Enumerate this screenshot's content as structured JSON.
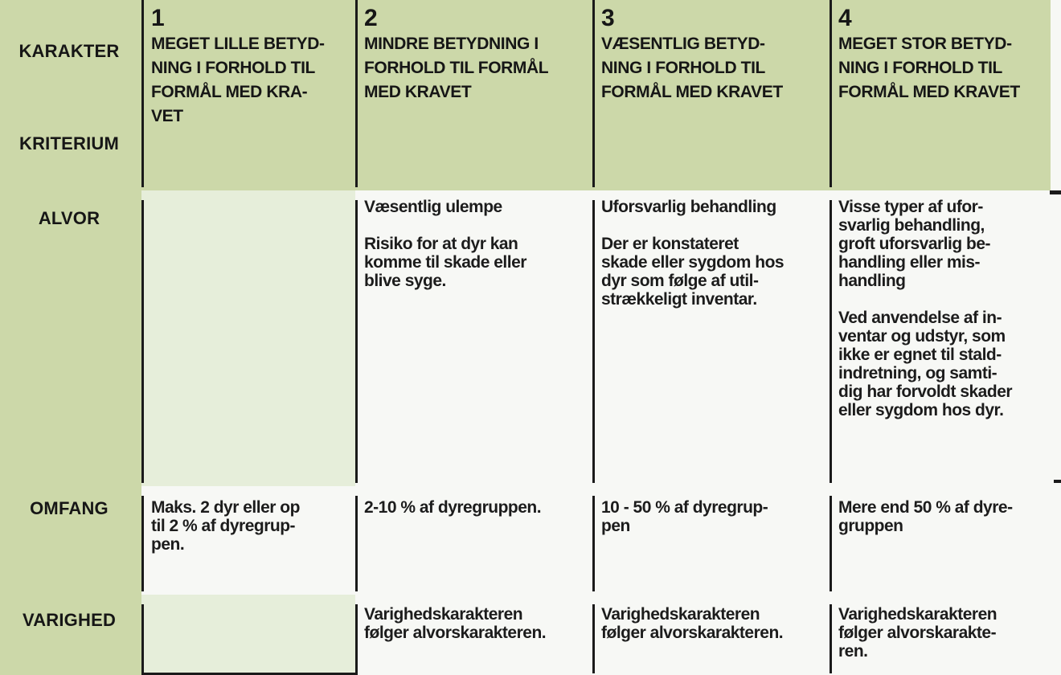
{
  "table": {
    "corner": {
      "top_label": "KARAKTER",
      "bottom_label": "KRITERIUM"
    },
    "columns": [
      {
        "number": "1",
        "heading": "MEGET LILLE BETYD-\nNING I FORHOLD TIL\nFORMÅL MED KRA-\nVET"
      },
      {
        "number": "2",
        "heading": "MINDRE BETYDNING I\nFORHOLD TIL FORMÅL\nMED KRAVET"
      },
      {
        "number": "3",
        "heading": "VÆSENTLIG BETYD-\nNING I FORHOLD TIL\nFORMÅL MED KRAVET"
      },
      {
        "number": "4",
        "heading": "MEGET STOR BETYD-\nNING I FORHOLD TIL\nFORMÅL MED KRAVET"
      }
    ],
    "rows": [
      {
        "label": "ALVOR",
        "cells": [
          "",
          "Væsentlig ulempe\n\nRisiko for at dyr kan\nkomme til skade eller\nblive syge.",
          "Uforsvarlig behandling\n\nDer er konstateret\nskade eller sygdom hos\ndyr som følge af util-\nstrækkeligt inventar.",
          "Visse typer af ufor-\nsvarlig behandling,\ngroft uforsvarlig be-\nhandling eller mis-\nhandling\n\nVed anvendelse af in-\nventar og udstyr, som\nikke er egnet til stald-\nindretning, og samti-\ndig har forvoldt skader\neller sygdom hos dyr."
        ]
      },
      {
        "label": "OMFANG",
        "cells": [
          "Maks. 2 dyr eller op\ntil 2 % af dyregrup-\npen.",
          "2-10 % af dyregruppen.",
          "10 - 50 % af dyregrup-\npen",
          "Mere end 50 % af dyre-\ngruppen"
        ]
      },
      {
        "label": "VARIGHED",
        "cells": [
          "",
          "Varighedskarakteren\nfølger alvorskarakteren.",
          "Varighedskarakteren\nfølger alvorskarakteren.",
          "Varighedskarakteren\nfølger alvorskarakte-\nren."
        ]
      }
    ],
    "colors": {
      "header_green": "#ccd8a9",
      "empty_cell_green": "#e6eeda",
      "cell_white": "#f7f8f5",
      "border_black": "#1a1a1a",
      "text": "#1c1c1c"
    }
  }
}
